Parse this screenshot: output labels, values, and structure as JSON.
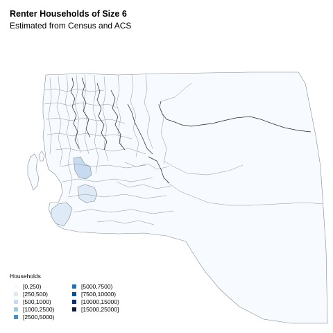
{
  "header": {
    "title": "Renter Households of Size 6",
    "subtitle": "Estimated from Census and ACS"
  },
  "legend": {
    "title": "Households",
    "items": [
      {
        "label": "[0,250)",
        "color": "#f7fbff"
      },
      {
        "label": "[250,500)",
        "color": "#deebf7"
      },
      {
        "label": "[500,1000)",
        "color": "#c6dbef"
      },
      {
        "label": "[1000,2500)",
        "color": "#9ecae1"
      },
      {
        "label": "[2500,5000)",
        "color": "#4292c6"
      },
      {
        "label": "[5000,7500)",
        "color": "#2171b5"
      },
      {
        "label": "[7500,10000)",
        "color": "#08519c"
      },
      {
        "label": "[10000,15000)",
        "color": "#08306b"
      },
      {
        "label": "[15000,25000]",
        "color": "#0b1f3a"
      }
    ]
  },
  "map_style": {
    "base_fill": "#f7fbff",
    "boundary_color": "#7f8a96",
    "river_color": "#222222"
  }
}
